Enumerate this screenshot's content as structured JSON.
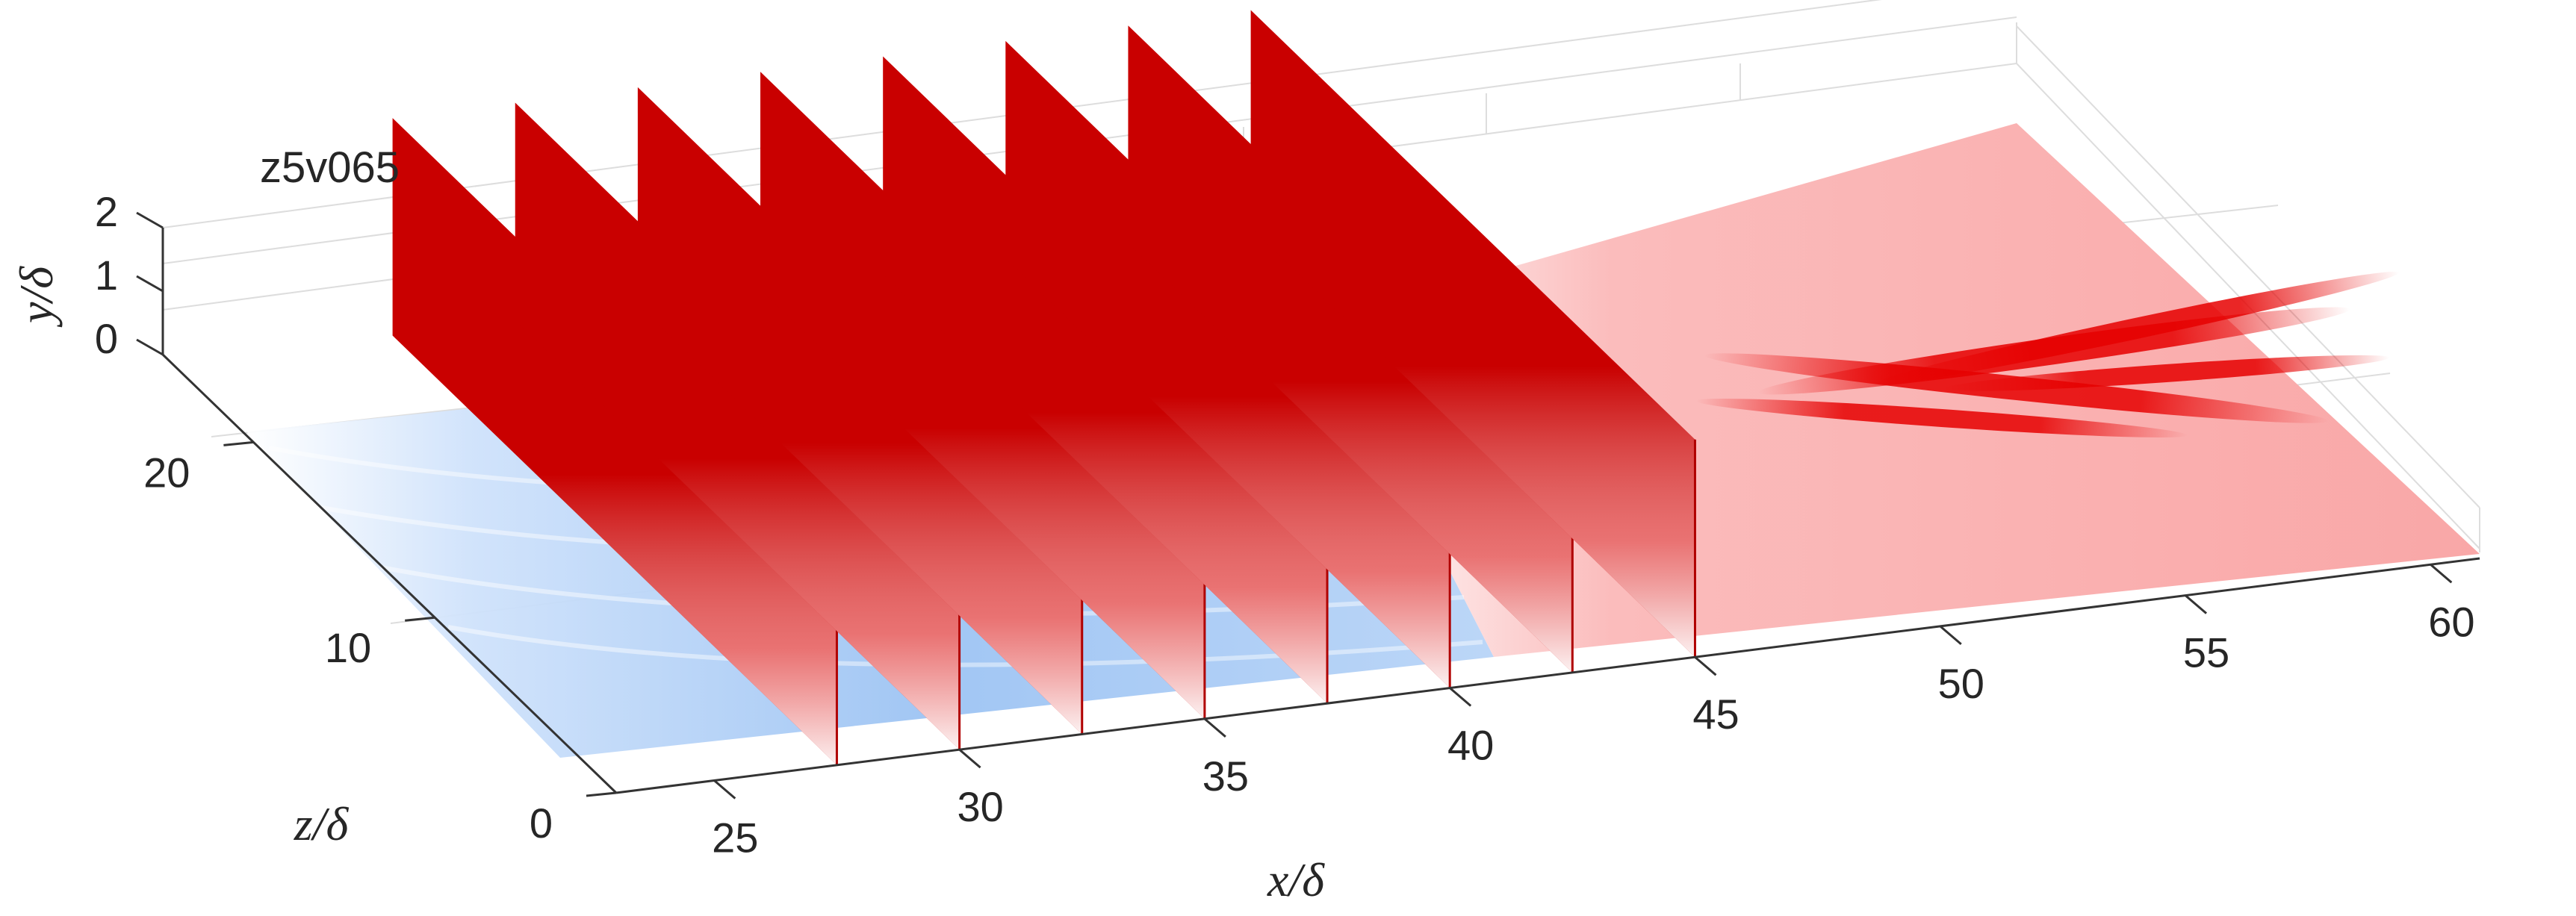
{
  "chart_data": {
    "type": "surface-3d",
    "annotation": "z5v065",
    "axes": {
      "x": {
        "label": "x/δ",
        "ticks": [
          25,
          30,
          35,
          40,
          45,
          50,
          55,
          60
        ],
        "lim": [
          23,
          61
        ]
      },
      "y": {
        "label": "y/δ",
        "ticks": [
          0,
          1,
          2
        ],
        "lim": [
          0,
          2
        ]
      },
      "z": {
        "label": "z/δ",
        "ticks": [
          0,
          10,
          20
        ],
        "lim": [
          0,
          25
        ]
      }
    },
    "grid": true,
    "slices": {
      "orientation": "constant-x planes (y–z)",
      "x_positions": [
        27.5,
        30,
        32.5,
        35,
        37.5,
        40,
        42.5,
        45
      ]
    },
    "floor_field": {
      "plane": "y = 0",
      "negative_region_x": [
        23,
        42
      ],
      "positive_region_x": [
        42,
        61
      ]
    },
    "colors": {
      "negative_dark": "#0a3fa8",
      "negative_light": "#d6e6fb",
      "positive_dark": "#c40000",
      "positive_light": "#fbb8b8"
    }
  }
}
